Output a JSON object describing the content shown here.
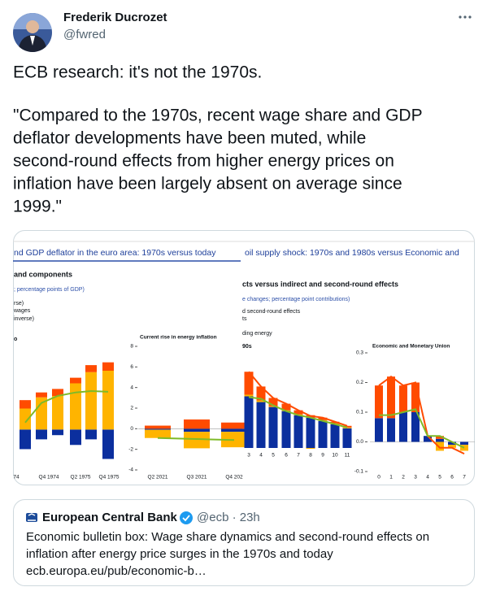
{
  "tweet": {
    "author_name": "Frederik Ducrozet",
    "handle": "@fwred",
    "text_lines": [
      "ECB research: it's not the 1970s.",
      "\"Compared to the 1970s, recent wage share and GDP",
      "deflator developments have been muted, while",
      "second-round effects from higher energy prices on",
      "inflation have been largely absent on average since",
      "1999.\""
    ]
  },
  "image": {
    "left_panel": {
      "title": "nd GDP deflator in the euro area: 1970s versus today",
      "heading": "and components",
      "units": "; percentage points of GDP)",
      "legend": [
        "rse)",
        "wages",
        "inverse)"
      ],
      "panel_label": "o"
    },
    "right_panel": {
      "title": "oil supply shock: 1970s and 1980s versus Economic and",
      "heading": "cts versus indirect and second-round effects",
      "units": "e changes; percentage point contributions)",
      "legend": [
        "d second-round effects",
        "ts",
        "ding energy"
      ],
      "panel_label": "90s"
    },
    "charts": [
      {
        "type": "bar",
        "stacked": true,
        "ylim": [
          -3,
          6
        ],
        "axis_labels": [
          "74",
          "Q4 1974",
          "Q2 1975",
          "Q4 1975"
        ],
        "series": [
          {
            "kind": "bar",
            "color": "#0b2f9e",
            "values": [
              -1.4,
              -0.7,
              -0.4,
              -1.1,
              -0.7,
              -2.1
            ]
          },
          {
            "kind": "bar",
            "color": "#ffb400",
            "values": [
              1.5,
              2.3,
              2.4,
              3.3,
              4.1,
              4.2
            ]
          },
          {
            "kind": "bar",
            "color": "#ff4b00",
            "values": [
              0.6,
              0.35,
              0.5,
              0.4,
              0.5,
              0.6
            ]
          },
          {
            "kind": "line",
            "color": "#7fba28",
            "values": [
              0.5,
              1.9,
              2.4,
              2.65,
              2.75,
              2.7
            ]
          }
        ]
      },
      {
        "type": "bar",
        "stacked": true,
        "title": "Current rise in energy inflation",
        "ylim": [
          -4,
          8
        ],
        "yticks": [
          8,
          6,
          4,
          2,
          0,
          -2,
          -4
        ],
        "categories": [
          "Q2 2021",
          "Q3 2021",
          "Q4 202"
        ],
        "series": [
          {
            "kind": "bar",
            "color": "#0b2f9e",
            "values": [
              -0.1,
              -0.3,
              -0.3
            ]
          },
          {
            "kind": "bar",
            "color": "#ffb400",
            "values": [
              -0.8,
              -1.6,
              -1.5
            ]
          },
          {
            "kind": "bar",
            "color": "#ff4b00",
            "values": [
              0.3,
              0.9,
              0.6
            ]
          },
          {
            "kind": "line",
            "color": "#7fba28",
            "values": [
              -0.9,
              -1.0,
              -1.1
            ]
          }
        ]
      },
      {
        "type": "bar",
        "stacked": true,
        "ylim": [
          0,
          1.25
        ],
        "categories": [
          "3",
          "4",
          "5",
          "6",
          "7",
          "8",
          "9",
          "10",
          "11"
        ],
        "series": [
          {
            "kind": "bar",
            "color": "#0b2f9e",
            "values": [
              0.63,
              0.56,
              0.5,
              0.45,
              0.4,
              0.37,
              0.33,
              0.29,
              0.24
            ]
          },
          {
            "kind": "bar",
            "color": "#ffb400",
            "values": [
              0.02,
              0.02,
              0.01,
              0.01,
              0.01,
              -0.01,
              0.01,
              0.01,
              0.01
            ]
          },
          {
            "kind": "bar",
            "color": "#ff4b00",
            "values": [
              0.28,
              0.17,
              0.1,
              0.08,
              0.05,
              0.03,
              0.03,
              0.02,
              0.02
            ]
          },
          {
            "kind": "line",
            "color": "#ff4b00",
            "values": [
              0.93,
              0.75,
              0.61,
              0.54,
              0.46,
              0.39,
              0.37,
              0.32,
              0.27
            ]
          },
          {
            "kind": "line",
            "color": "#7fba28",
            "values": [
              0.62,
              0.6,
              0.52,
              0.45,
              0.4,
              0.37,
              0.33,
              0.29,
              0.25
            ]
          }
        ]
      },
      {
        "type": "bar",
        "stacked": true,
        "title": "Economic and Monetary Union",
        "ylim": [
          -0.1,
          0.3
        ],
        "yticks": [
          0.3,
          0.2,
          0.1,
          {
            "value": 0,
            "label": "0.0"
          },
          -0.1
        ],
        "categories": [
          "0",
          "1",
          "2",
          "3",
          "4",
          "5",
          "6",
          "7"
        ],
        "series": [
          {
            "kind": "bar",
            "color": "#0b2f9e",
            "values": [
              0.08,
              0.08,
              0.1,
              0.1,
              0.02,
              0.01,
              -0.01,
              -0.01
            ]
          },
          {
            "kind": "bar",
            "color": "#ffb400",
            "values": [
              0.0,
              0.0,
              0.0,
              0.0,
              0.0,
              -0.03,
              -0.01,
              -0.02
            ]
          },
          {
            "kind": "bar",
            "color": "#ff4b00",
            "values": [
              0.11,
              0.14,
              0.09,
              0.1,
              0.0,
              0.01,
              0.0,
              0.0
            ]
          },
          {
            "kind": "line",
            "color": "#ff4b00",
            "values": [
              0.19,
              0.22,
              0.19,
              0.2,
              0.02,
              -0.02,
              -0.02,
              -0.04
            ]
          },
          {
            "kind": "line",
            "color": "#7fba28",
            "values": [
              0.09,
              0.09,
              0.1,
              0.11,
              0.02,
              0.02,
              0.0,
              -0.02
            ]
          }
        ]
      }
    ]
  },
  "quote": {
    "name": "European Central Bank",
    "handle": "@ecb · 23h",
    "text_lines": [
      "Economic bulletin box: Wage share dynamics and second-round effects on",
      "inflation after energy price surges in the 1970s and today",
      "ecb.europa.eu/pub/economic-b…"
    ]
  }
}
